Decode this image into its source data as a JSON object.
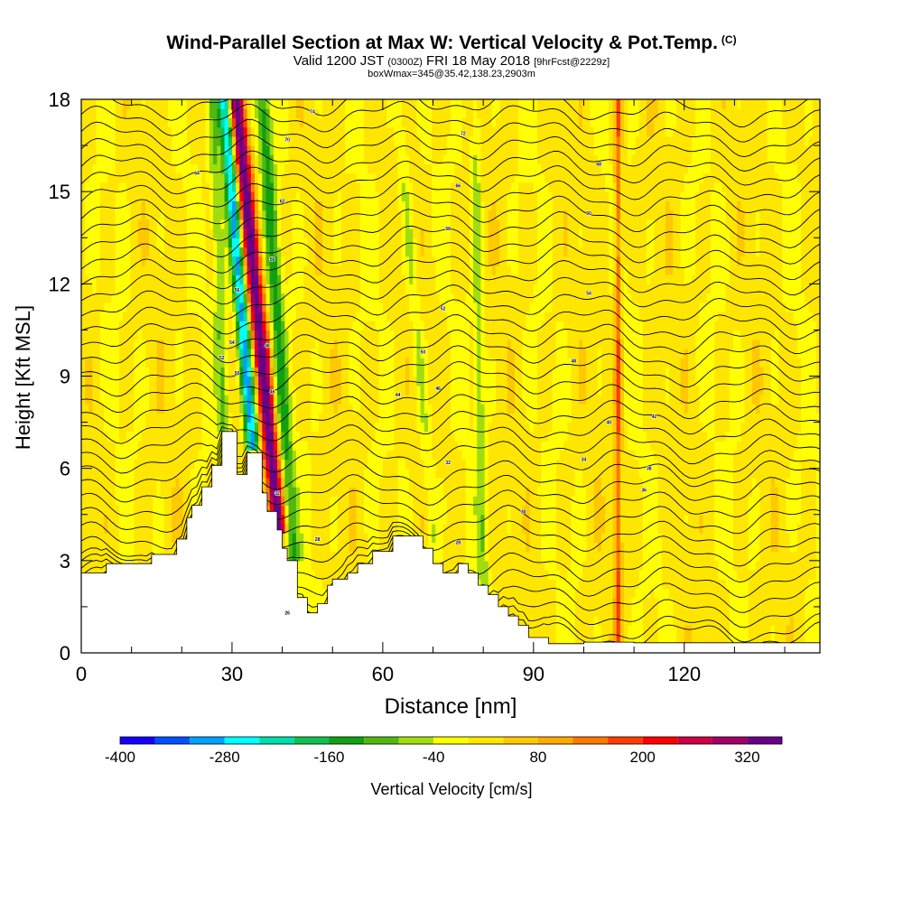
{
  "header": {
    "title": "Wind-Parallel Section at Max W: Vertical Velocity & Pot.Temp.",
    "title_unit": "(C)",
    "valid_prefix": "Valid 1200 JST",
    "valid_utc": "(0300Z)",
    "valid_date": "FRI 18 May 2018",
    "forecast": "[9hrFcst@2229z]",
    "box_info": "boxWmax=345@35.42,138.23,2903m"
  },
  "chart_data": {
    "type": "heatmap",
    "xlabel": "Distance [nm]",
    "ylabel": "Height [Kft MSL]",
    "xlim": [
      0,
      147
    ],
    "ylim": [
      0,
      18
    ],
    "x_ticks": [
      0,
      30,
      60,
      90,
      120
    ],
    "y_ticks": [
      0,
      3,
      6,
      9,
      12,
      15,
      18
    ],
    "grid": false,
    "colorbar": {
      "label": "Vertical Velocity [cm/s]",
      "levels": [
        -400,
        -360,
        -320,
        -280,
        -240,
        -200,
        -160,
        -120,
        -80,
        -40,
        0,
        40,
        80,
        120,
        160,
        200,
        240,
        280,
        320,
        360
      ],
      "tick_labels": [
        -400,
        -280,
        -160,
        -40,
        80,
        200,
        320
      ],
      "colors": [
        "#1400ff",
        "#0050ff",
        "#00a0ff",
        "#00ffff",
        "#00dcaa",
        "#10c050",
        "#10a010",
        "#50b810",
        "#a0dc10",
        "#ffff00",
        "#ffe600",
        "#ffc800",
        "#ffaa00",
        "#ff7800",
        "#ff3c00",
        "#ff0000",
        "#cc0044",
        "#a00066",
        "#6a0088"
      ]
    },
    "terrain_kft": [
      [
        0,
        2.6
      ],
      [
        5,
        2.6
      ],
      [
        5,
        2.9
      ],
      [
        14,
        2.9
      ],
      [
        14,
        3.2
      ],
      [
        19,
        3.2
      ],
      [
        19,
        3.7
      ],
      [
        21,
        3.7
      ],
      [
        21,
        4.4
      ],
      [
        22,
        4.4
      ],
      [
        22,
        4.8
      ],
      [
        24,
        4.8
      ],
      [
        24,
        5.4
      ],
      [
        26,
        5.4
      ],
      [
        26,
        6.1
      ],
      [
        28,
        6.1
      ],
      [
        28,
        7.2
      ],
      [
        31,
        7.2
      ],
      [
        31,
        5.8
      ],
      [
        33,
        5.8
      ],
      [
        33,
        6.5
      ],
      [
        36,
        6.5
      ],
      [
        36,
        5.2
      ],
      [
        37,
        5.2
      ],
      [
        37,
        4.6
      ],
      [
        39,
        4.6
      ],
      [
        39,
        4.0
      ],
      [
        40,
        4.0
      ],
      [
        40,
        3.4
      ],
      [
        41,
        3.4
      ],
      [
        41,
        3.0
      ],
      [
        43,
        3.0
      ],
      [
        43,
        1.8
      ],
      [
        45,
        1.8
      ],
      [
        45,
        1.3
      ],
      [
        47,
        1.3
      ],
      [
        47,
        1.6
      ],
      [
        49,
        1.6
      ],
      [
        49,
        2.2
      ],
      [
        50,
        2.2
      ],
      [
        50,
        2.4
      ],
      [
        53,
        2.4
      ],
      [
        53,
        2.6
      ],
      [
        55,
        2.6
      ],
      [
        55,
        2.9
      ],
      [
        58,
        2.9
      ],
      [
        58,
        3.3
      ],
      [
        62,
        3.3
      ],
      [
        62,
        3.8
      ],
      [
        68,
        3.8
      ],
      [
        68,
        3.4
      ],
      [
        70,
        3.4
      ],
      [
        70,
        2.9
      ],
      [
        72,
        2.9
      ],
      [
        72,
        2.6
      ],
      [
        75,
        2.6
      ],
      [
        75,
        2.9
      ],
      [
        77,
        2.9
      ],
      [
        77,
        2.6
      ],
      [
        79,
        2.6
      ],
      [
        79,
        2.2
      ],
      [
        81,
        2.2
      ],
      [
        81,
        1.9
      ],
      [
        83,
        1.9
      ],
      [
        83,
        1.5
      ],
      [
        85,
        1.5
      ],
      [
        85,
        1.2
      ],
      [
        87,
        1.2
      ],
      [
        87,
        0.9
      ],
      [
        89,
        0.9
      ],
      [
        89,
        0.5
      ],
      [
        93,
        0.5
      ],
      [
        93,
        0.3
      ],
      [
        100,
        0.3
      ],
      [
        100,
        0.35
      ],
      [
        110,
        0.35
      ],
      [
        110,
        0.33
      ],
      [
        147,
        0.33
      ]
    ],
    "updraft_cells_cmps": [
      {
        "x_center": 34.5,
        "tilt_nm_per_kft": -0.6,
        "half_width_nm": 1.6,
        "w_max": 345
      },
      {
        "x_center": 31.5,
        "tilt_nm_per_kft": -0.5,
        "half_width_nm": 1.3,
        "w_max": -320
      },
      {
        "x_center": 38.5,
        "tilt_nm_per_kft": -0.4,
        "half_width_nm": 1.4,
        "w_max": -140
      },
      {
        "x_center": 27.5,
        "tilt_nm_per_kft": -0.2,
        "half_width_nm": 1.2,
        "w_max": -90
      },
      {
        "x_center": 66,
        "tilt_nm_per_kft": -0.5,
        "half_width_nm": 1.2,
        "w_max": -60
      },
      {
        "x_center": 79,
        "tilt_nm_per_kft": -0.1,
        "half_width_nm": 1.0,
        "w_max": -70
      },
      {
        "x_center": 107,
        "tilt_nm_per_kft": 0.0,
        "half_width_nm": 0.8,
        "w_max": 170
      },
      {
        "x_center": 107.5,
        "tilt_nm_per_kft": 0.0,
        "half_width_nm": 0.6,
        "w_max": -60
      }
    ],
    "isentrope_labels": [
      {
        "x": 41,
        "y": 1.3,
        "text": "26"
      },
      {
        "x": 47,
        "y": 3.7,
        "text": "28"
      },
      {
        "x": 75,
        "y": 3.6,
        "text": "28"
      },
      {
        "x": 88,
        "y": 4.6,
        "text": "30"
      },
      {
        "x": 39,
        "y": 5.2,
        "text": "32"
      },
      {
        "x": 73,
        "y": 6.2,
        "text": "32"
      },
      {
        "x": 100,
        "y": 6.3,
        "text": "34"
      },
      {
        "x": 112,
        "y": 5.3,
        "text": "36"
      },
      {
        "x": 113,
        "y": 6.0,
        "text": "38"
      },
      {
        "x": 105,
        "y": 7.5,
        "text": "40"
      },
      {
        "x": 114,
        "y": 7.7,
        "text": "42"
      },
      {
        "x": 63,
        "y": 8.4,
        "text": "44"
      },
      {
        "x": 71,
        "y": 8.6,
        "text": "46"
      },
      {
        "x": 98,
        "y": 9.5,
        "text": "48"
      },
      {
        "x": 68,
        "y": 9.8,
        "text": "50"
      },
      {
        "x": 72,
        "y": 11.2,
        "text": "52"
      },
      {
        "x": 101,
        "y": 11.7,
        "text": "54"
      },
      {
        "x": 38,
        "y": 12.8,
        "text": "56"
      },
      {
        "x": 73,
        "y": 13.8,
        "text": "58"
      },
      {
        "x": 101,
        "y": 14.3,
        "text": "60"
      },
      {
        "x": 40,
        "y": 14.7,
        "text": "62"
      },
      {
        "x": 23,
        "y": 15.6,
        "text": "64"
      },
      {
        "x": 75,
        "y": 15.2,
        "text": "66"
      },
      {
        "x": 103,
        "y": 15.9,
        "text": "68"
      },
      {
        "x": 41,
        "y": 16.7,
        "text": "70"
      },
      {
        "x": 76,
        "y": 16.9,
        "text": "72"
      },
      {
        "x": 46,
        "y": 17.6,
        "text": "74"
      },
      {
        "x": 31,
        "y": 11.8,
        "text": "56"
      },
      {
        "x": 30,
        "y": 10.1,
        "text": "54"
      },
      {
        "x": 31,
        "y": 9.1,
        "text": "50"
      },
      {
        "x": 28,
        "y": 9.6,
        "text": "52"
      },
      {
        "x": 37,
        "y": 10.0,
        "text": "48"
      },
      {
        "x": 38,
        "y": 8.5,
        "text": "46"
      }
    ]
  }
}
